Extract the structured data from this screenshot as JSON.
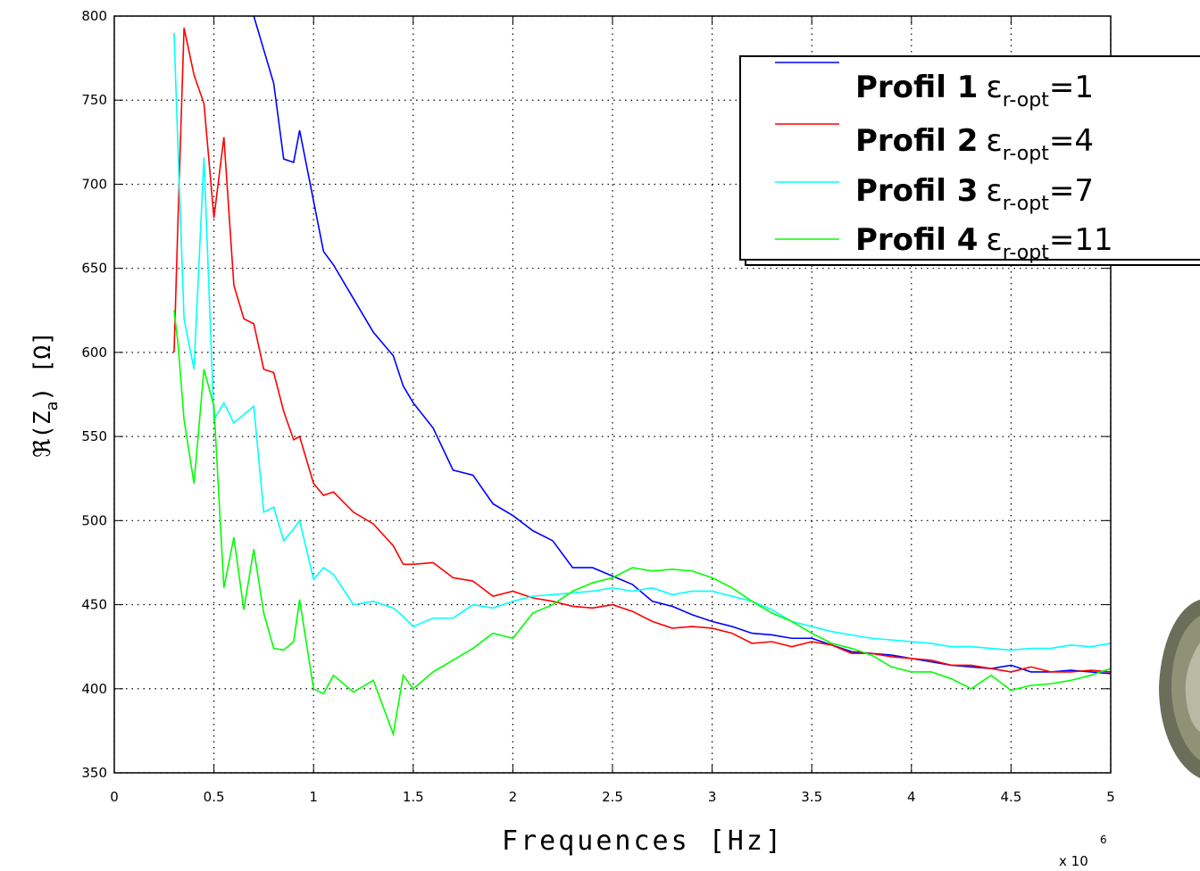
{
  "chart_data": {
    "type": "line",
    "xlabel": "Frequences [Hz]",
    "x_multiplier": {
      "base": "x 10",
      "exponent": "6"
    },
    "ylabel": {
      "main": "ℜ(Z",
      "sub": "a",
      "tail": ") [Ω]"
    },
    "x": [
      0.3,
      0.32,
      0.35,
      0.4,
      0.45,
      0.5,
      0.55,
      0.6,
      0.65,
      0.7,
      0.75,
      0.8,
      0.85,
      0.9,
      0.93,
      1.0,
      1.05,
      1.1,
      1.2,
      1.3,
      1.4,
      1.45,
      1.5,
      1.6,
      1.7,
      1.8,
      1.9,
      2.0,
      2.1,
      2.2,
      2.3,
      2.4,
      2.5,
      2.6,
      2.7,
      2.8,
      2.9,
      3.0,
      3.1,
      3.2,
      3.3,
      3.4,
      3.5,
      3.6,
      3.7,
      3.8,
      3.9,
      4.0,
      4.1,
      4.2,
      4.3,
      4.4,
      4.5,
      4.6,
      4.7,
      4.8,
      4.9,
      5.0
    ],
    "series": [
      {
        "name": "Profil 1",
        "legend_parts": {
          "symbol": "ε",
          "sub": "r-opt",
          "value": "=1"
        },
        "color": "#0000ff",
        "values": [
          null,
          null,
          null,
          null,
          null,
          null,
          null,
          null,
          null,
          800,
          780,
          760,
          715,
          713,
          732,
          690,
          660,
          652,
          632,
          612,
          598,
          580,
          570,
          555,
          530,
          527,
          510,
          503,
          494,
          488,
          472,
          472,
          467,
          462,
          452,
          449,
          444,
          440,
          437,
          433,
          432,
          430,
          430,
          426,
          422,
          421,
          420,
          418,
          416,
          414,
          413,
          412,
          414,
          410,
          410,
          411,
          410,
          409
        ]
      },
      {
        "name": "Profil 2",
        "legend_parts": {
          "symbol": "ε",
          "sub": "r-opt",
          "value": "=4"
        },
        "color": "#ff0000",
        "values": [
          600,
          680,
          793,
          765,
          748,
          680,
          728,
          640,
          620,
          617,
          590,
          588,
          565,
          548,
          550,
          522,
          515,
          517,
          505,
          498,
          485,
          474,
          474,
          475,
          466,
          464,
          455,
          458,
          454,
          452,
          449,
          448,
          450,
          446,
          440,
          436,
          437,
          436,
          433,
          427,
          428,
          425,
          428,
          426,
          421,
          421,
          419,
          418,
          417,
          414,
          414,
          412,
          410,
          413,
          410,
          410,
          411,
          410
        ]
      },
      {
        "name": "Profil 3",
        "legend_parts": {
          "symbol": "ε",
          "sub": "r-opt",
          "value": "=7"
        },
        "color": "#00ffff",
        "values": [
          790,
          720,
          620,
          590,
          716,
          560,
          570,
          558,
          563,
          568,
          505,
          508,
          488,
          495,
          500,
          465,
          472,
          468,
          450,
          452,
          448,
          443,
          437,
          442,
          442,
          450,
          448,
          452,
          455,
          456,
          457,
          458,
          460,
          458,
          460,
          456,
          458,
          458,
          455,
          452,
          447,
          440,
          437,
          434,
          432,
          430,
          429,
          428,
          427,
          425,
          425,
          424,
          423,
          424,
          424,
          426,
          425,
          427
        ]
      },
      {
        "name": "Profil 4",
        "legend_parts": {
          "symbol": "ε",
          "sub": "r-opt",
          "value": "=11"
        },
        "color": "#00ff00",
        "values": [
          625,
          605,
          560,
          522,
          590,
          568,
          460,
          490,
          447,
          483,
          445,
          424,
          423,
          428,
          453,
          400,
          397,
          408,
          398,
          405,
          373,
          408,
          400,
          410,
          417,
          424,
          433,
          430,
          445,
          450,
          458,
          463,
          466,
          472,
          470,
          471,
          470,
          466,
          460,
          452,
          445,
          440,
          433,
          427,
          424,
          420,
          413,
          410,
          410,
          406,
          400,
          408,
          399,
          402,
          403,
          405,
          408,
          412
        ]
      }
    ],
    "xlim": [
      0,
      5
    ],
    "xticks": [
      0,
      0.5,
      1,
      1.5,
      2,
      2.5,
      3,
      3.5,
      4,
      4.5,
      5
    ],
    "ylim": [
      350,
      800
    ],
    "yticks": [
      350,
      400,
      450,
      500,
      550,
      600,
      650,
      700,
      750,
      800
    ],
    "grid": true,
    "legend": "upper-right"
  }
}
